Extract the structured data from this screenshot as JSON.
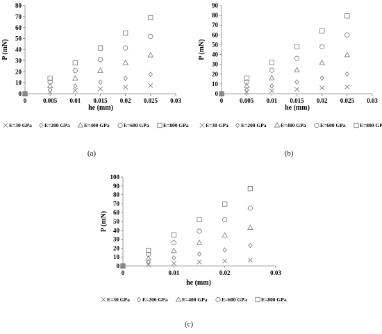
{
  "chart_data": [
    {
      "type": "scatter",
      "panel_label": "(a)",
      "xlabel": "he (mm)",
      "ylabel": "P (mN)",
      "xlim": [
        0,
        0.03
      ],
      "ylim": [
        0,
        80
      ],
      "xticks": [
        "0",
        "0.005",
        "0.01",
        "0.015",
        "0.02",
        "0.025",
        "0.03"
      ],
      "yticks": [
        "0",
        "10",
        "20",
        "30",
        "40",
        "50",
        "60",
        "70",
        "80"
      ],
      "legend_position": "bottom",
      "x": [
        0,
        0.005,
        0.01,
        0.015,
        0.02,
        0.025
      ],
      "series": [
        {
          "name": "E=30 GPa",
          "marker": "x",
          "values": [
            0,
            1.5,
            3,
            4.5,
            6,
            7.5
          ]
        },
        {
          "name": "E=200 GPa",
          "marker": "diamond",
          "values": [
            0,
            3.5,
            7,
            10.5,
            14,
            17.5
          ]
        },
        {
          "name": "E=400 GPa",
          "marker": "triangle",
          "values": [
            0,
            7,
            14,
            21,
            28,
            35
          ]
        },
        {
          "name": "E=600 GPa",
          "marker": "circle",
          "values": [
            0,
            10.5,
            21,
            31,
            41.5,
            52
          ]
        },
        {
          "name": "E=800 GPa",
          "marker": "square",
          "values": [
            0,
            14,
            28,
            41.5,
            55,
            69
          ]
        }
      ]
    },
    {
      "type": "scatter",
      "panel_label": "(b)",
      "xlabel": "he (mm)",
      "ylabel": "P (mN)",
      "xlim": [
        0,
        0.03
      ],
      "ylim": [
        0,
        90
      ],
      "xticks": [
        "0",
        "0.005",
        "0.01",
        "0.015",
        "0.02",
        "0.025",
        "0.03"
      ],
      "yticks": [
        "0",
        "10",
        "20",
        "30",
        "40",
        "50",
        "60",
        "70",
        "80",
        "90"
      ],
      "legend_position": "bottom",
      "x": [
        0,
        0.005,
        0.01,
        0.015,
        0.02,
        0.025
      ],
      "series": [
        {
          "name": "E=30 GPa",
          "marker": "x",
          "values": [
            0,
            1.5,
            3,
            4.5,
            6,
            7
          ]
        },
        {
          "name": "E=200 GPa",
          "marker": "diamond",
          "values": [
            0,
            4,
            8,
            12,
            16,
            20
          ]
        },
        {
          "name": "E=400 GPa",
          "marker": "triangle",
          "values": [
            0,
            8,
            16,
            24,
            31.5,
            39.5
          ]
        },
        {
          "name": "E=600 GPa",
          "marker": "circle",
          "values": [
            0,
            12,
            24,
            36,
            48,
            60
          ]
        },
        {
          "name": "E=800 GPa",
          "marker": "square",
          "values": [
            0,
            16,
            32,
            48,
            64,
            79.5
          ]
        }
      ]
    },
    {
      "type": "scatter",
      "panel_label": "(c)",
      "xlabel": "he (mm)",
      "ylabel": "P (mN)",
      "xlim": [
        0,
        0.03
      ],
      "ylim": [
        0,
        100
      ],
      "xticks": [
        "0",
        "0.01",
        "0.02",
        "0.03"
      ],
      "yticks": [
        "0",
        "10",
        "20",
        "30",
        "40",
        "50",
        "60",
        "70",
        "80",
        "90",
        "100"
      ],
      "legend_position": "bottom",
      "x": [
        0,
        0.005,
        0.01,
        0.015,
        0.02,
        0.025
      ],
      "series": [
        {
          "name": "E=30 GPa",
          "marker": "x",
          "values": [
            0,
            1.5,
            3,
            4.5,
            5.5,
            6.5
          ]
        },
        {
          "name": "E=200 GPa",
          "marker": "diamond",
          "values": [
            0,
            4.5,
            9,
            13.5,
            18,
            23
          ]
        },
        {
          "name": "E=400 GPa",
          "marker": "triangle",
          "values": [
            0,
            8.5,
            17,
            26,
            34.5,
            43
          ]
        },
        {
          "name": "E=600 GPa",
          "marker": "circle",
          "values": [
            0,
            13,
            26,
            39,
            52,
            65
          ]
        },
        {
          "name": "E=800 GPa",
          "marker": "square",
          "values": [
            0,
            17.5,
            35,
            52,
            69.5,
            87
          ]
        }
      ]
    }
  ]
}
